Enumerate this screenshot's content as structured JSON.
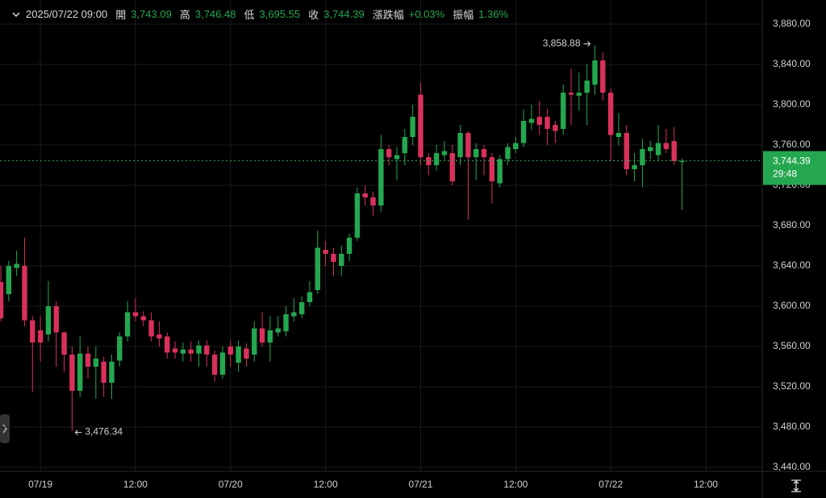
{
  "header": {
    "datetime": "2025/07/22 09:00",
    "fields": [
      {
        "label": "開",
        "value": "3,743.09"
      },
      {
        "label": "高",
        "value": "3,746.48"
      },
      {
        "label": "低",
        "value": "3,695.55"
      },
      {
        "label": "收",
        "value": "3,744.39"
      },
      {
        "label": "漲跌幅",
        "value": "+0.03%"
      },
      {
        "label": "振幅",
        "value": "1.36%"
      }
    ]
  },
  "chart_data": {
    "type": "candlestick",
    "categories": [
      null,
      null,
      null,
      null,
      null,
      "07/19",
      null,
      null,
      null,
      null,
      null,
      null,
      null,
      null,
      null,
      null,
      null,
      "12:00",
      null,
      null,
      null,
      null,
      null,
      null,
      null,
      null,
      null,
      null,
      null,
      "07/20",
      null,
      null,
      null,
      null,
      null,
      null,
      null,
      null,
      null,
      null,
      null,
      "12:00",
      null,
      null,
      null,
      null,
      null,
      null,
      null,
      null,
      null,
      null,
      null,
      "07/21",
      null,
      null,
      null,
      null,
      null,
      null,
      null,
      null,
      null,
      null,
      null,
      "12:00",
      null,
      null,
      null,
      null,
      null,
      null,
      null,
      null,
      null,
      null,
      null,
      "07/22",
      null,
      null,
      null,
      null,
      null,
      null,
      null,
      null,
      null,
      null,
      null,
      "12:00"
    ],
    "open": [
      3624,
      3612,
      3638,
      3640,
      3586,
      3576,
      3572,
      3600,
      3574,
      3552,
      3516,
      3553,
      3540,
      3545,
      3524,
      3546,
      3570,
      3594,
      3590,
      3586,
      3572,
      3570,
      3558,
      3553,
      3557,
      3553,
      3561,
      3552,
      3532,
      3560,
      3544,
      3558,
      3552,
      3578,
      3564,
      3574,
      3575,
      3590,
      3592,
      3604,
      3616,
      3656,
      3652,
      3640,
      3652,
      3668,
      3712,
      3708,
      3700,
      3756,
      3746,
      3752,
      3768,
      3810,
      3748,
      3740,
      3750,
      3752,
      3748,
      3772,
      3748,
      3756,
      3748,
      3722,
      3746,
      3756,
      3762,
      3782,
      3788,
      3788,
      3780,
      3776,
      3812,
      3809,
      3812,
      3820,
      3844,
      3812,
      3768,
      3772,
      3736,
      3740,
      3754,
      3750,
      3762,
      3764,
      3743.09,
      null,
      null,
      null
    ],
    "high": [
      3640,
      3645,
      3655,
      3668,
      3590,
      3590,
      3625,
      3605,
      3575,
      3560,
      3570,
      3560,
      3560,
      3550,
      3552,
      3574,
      3605,
      3608,
      3595,
      3594,
      3585,
      3574,
      3565,
      3564,
      3565,
      3566,
      3566,
      3556,
      3560,
      3566,
      3566,
      3563,
      3585,
      3594,
      3590,
      3590,
      3600,
      3608,
      3610,
      3625,
      3675,
      3665,
      3658,
      3660,
      3672,
      3718,
      3720,
      3714,
      3770,
      3760,
      3758,
      3776,
      3800,
      3822,
      3752,
      3760,
      3764,
      3760,
      3780,
      3774,
      3762,
      3760,
      3752,
      3750,
      3762,
      3768,
      3795,
      3800,
      3804,
      3796,
      3784,
      3820,
      3836,
      3832,
      3840,
      3858.88,
      3852,
      3816,
      3792,
      3780,
      3752,
      3766,
      3764,
      3780,
      3776,
      3778,
      3746.48,
      null,
      null,
      null
    ],
    "low": [
      3585,
      3605,
      3630,
      3580,
      3515,
      3545,
      3565,
      3540,
      3535,
      3476.34,
      3510,
      3528,
      3508,
      3510,
      3508,
      3540,
      3565,
      3585,
      3580,
      3565,
      3560,
      3548,
      3548,
      3545,
      3545,
      3540,
      3540,
      3525,
      3528,
      3540,
      3535,
      3540,
      3545,
      3560,
      3545,
      3570,
      3570,
      3585,
      3588,
      3600,
      3612,
      3640,
      3630,
      3630,
      3645,
      3665,
      3700,
      3690,
      3694,
      3740,
      3725,
      3740,
      3760,
      3740,
      3730,
      3735,
      3745,
      3720,
      3740,
      3686,
      3725,
      3730,
      3702,
      3718,
      3740,
      3752,
      3758,
      3775,
      3770,
      3760,
      3762,
      3770,
      3780,
      3794,
      3780,
      3810,
      3804,
      3744,
      3760,
      3730,
      3724,
      3718,
      3746,
      3745,
      3752,
      3740,
      3695.55,
      null,
      null,
      null
    ],
    "close": [
      3588,
      3640,
      3642,
      3586,
      3564,
      3564,
      3600,
      3574,
      3552,
      3516,
      3553,
      3540,
      3548,
      3524,
      3545,
      3570,
      3594,
      3590,
      3586,
      3570,
      3568,
      3554,
      3554,
      3557,
      3553,
      3561,
      3552,
      3532,
      3554,
      3552,
      3560,
      3548,
      3578,
      3564,
      3576,
      3578,
      3592,
      3594,
      3604,
      3614,
      3658,
      3652,
      3644,
      3652,
      3668,
      3712,
      3708,
      3700,
      3756,
      3748,
      3750,
      3768,
      3788,
      3748,
      3740,
      3752,
      3754,
      3724,
      3772,
      3748,
      3756,
      3748,
      3724,
      3746,
      3758,
      3762,
      3784,
      3786,
      3780,
      3776,
      3774,
      3812,
      3810,
      3812,
      3824,
      3844,
      3812,
      3770,
      3772,
      3736,
      3740,
      3756,
      3758,
      3762,
      3756,
      3744,
      3744.39,
      null,
      null,
      null
    ],
    "up_color": "#25a750",
    "down_color": "#d8315b",
    "ylim": [
      3440,
      3880
    ],
    "yticks": [
      {
        "value": 3440,
        "label": "3,440.00"
      },
      {
        "value": 3480,
        "label": "3,480.00"
      },
      {
        "value": 3520,
        "label": "3,520.00"
      },
      {
        "value": 3560,
        "label": "3,560.00"
      },
      {
        "value": 3600,
        "label": "3,600.00"
      },
      {
        "value": 3640,
        "label": "3,640.00"
      },
      {
        "value": 3680,
        "label": "3,680.00"
      },
      {
        "value": 3720,
        "label": "3,720.00"
      },
      {
        "value": 3760,
        "label": "3,760.00"
      },
      {
        "value": 3800,
        "label": "3,800.00"
      },
      {
        "value": 3840,
        "label": "3,840.00"
      },
      {
        "value": 3880,
        "label": "3,880.00"
      }
    ],
    "grid": true,
    "high_marker": {
      "value": 3858.88,
      "label": "3,858.88"
    },
    "low_marker": {
      "value": 3476.34,
      "label": "3,476.34"
    },
    "last_price": {
      "value": 3744.39,
      "label": "3,744.39",
      "countdown": "29:48"
    }
  }
}
